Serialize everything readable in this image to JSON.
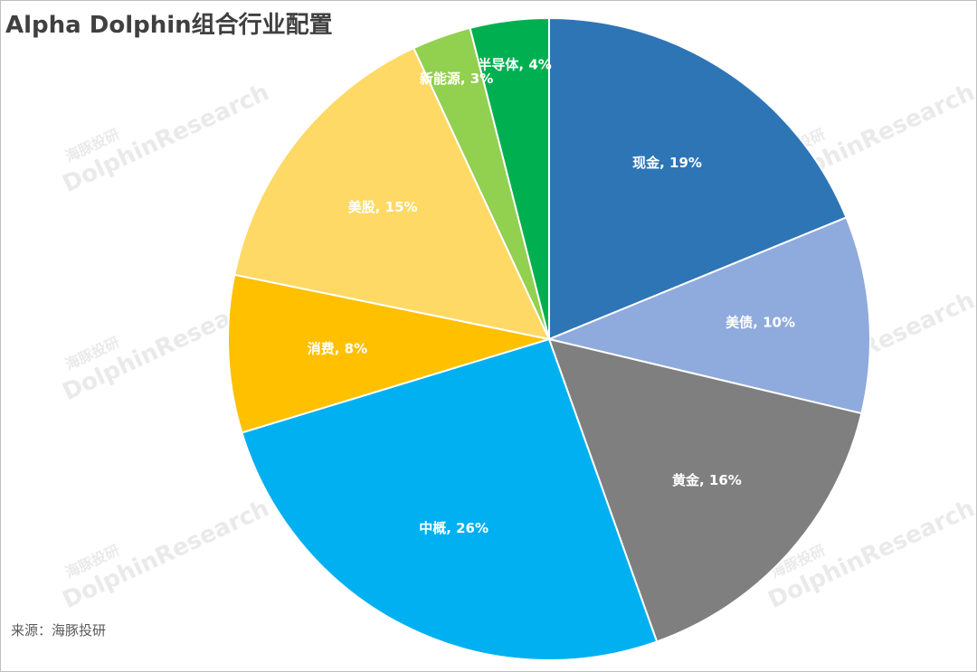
{
  "chart_data": {
    "type": "pie",
    "title": "Alpha Dolphin组合行业配置",
    "source": "来源：海豚投研",
    "watermark": [
      "海豚投研",
      "DolphinResearch"
    ],
    "values": [
      19,
      10,
      16,
      26,
      8,
      15,
      3,
      4
    ],
    "value_labels": [
      "现金, 19%",
      "美债, 10%",
      "黄金, 16%",
      "中概, 26%",
      "消费, 8%",
      "美股, 15%",
      "新能源, 3%",
      "半导体, 4%"
    ],
    "colors": [
      "#2e75b6",
      "#8faadc",
      "#7f7f7f",
      "#00b0f0",
      "#ffc000",
      "#ffd966",
      "#92d050",
      "#00b050"
    ]
  }
}
